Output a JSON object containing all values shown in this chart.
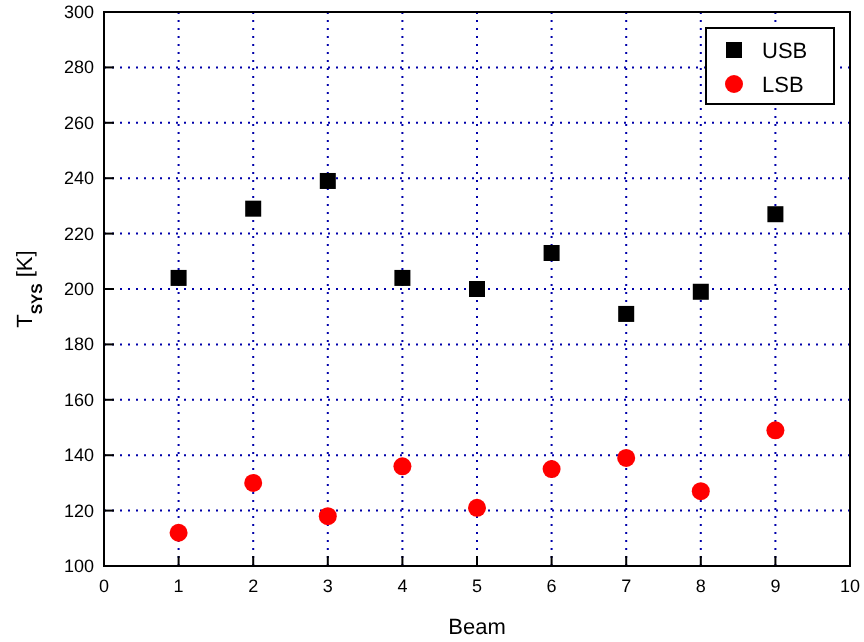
{
  "chart_data": {
    "type": "scatter",
    "xlabel": "Beam",
    "ylabel": "T$_{SYS}$ [K]",
    "x": [
      1,
      2,
      3,
      4,
      5,
      6,
      7,
      8,
      9
    ],
    "series": [
      {
        "name": "USB",
        "color": "#000000",
        "marker": "square",
        "values": [
          204,
          229,
          239,
          204,
          200,
          213,
          191,
          199,
          227
        ]
      },
      {
        "name": "LSB",
        "color": "#ff0000",
        "marker": "circle",
        "values": [
          112,
          130,
          118,
          136,
          121,
          135,
          139,
          127,
          149
        ]
      }
    ],
    "xlim": [
      0,
      10
    ],
    "xticks": [
      0,
      1,
      2,
      3,
      4,
      5,
      6,
      7,
      8,
      9,
      10
    ],
    "ylim": [
      100,
      300
    ],
    "yticks": [
      100,
      120,
      140,
      160,
      180,
      200,
      220,
      240,
      260,
      280,
      300
    ],
    "grid": true,
    "legend": "top right"
  }
}
